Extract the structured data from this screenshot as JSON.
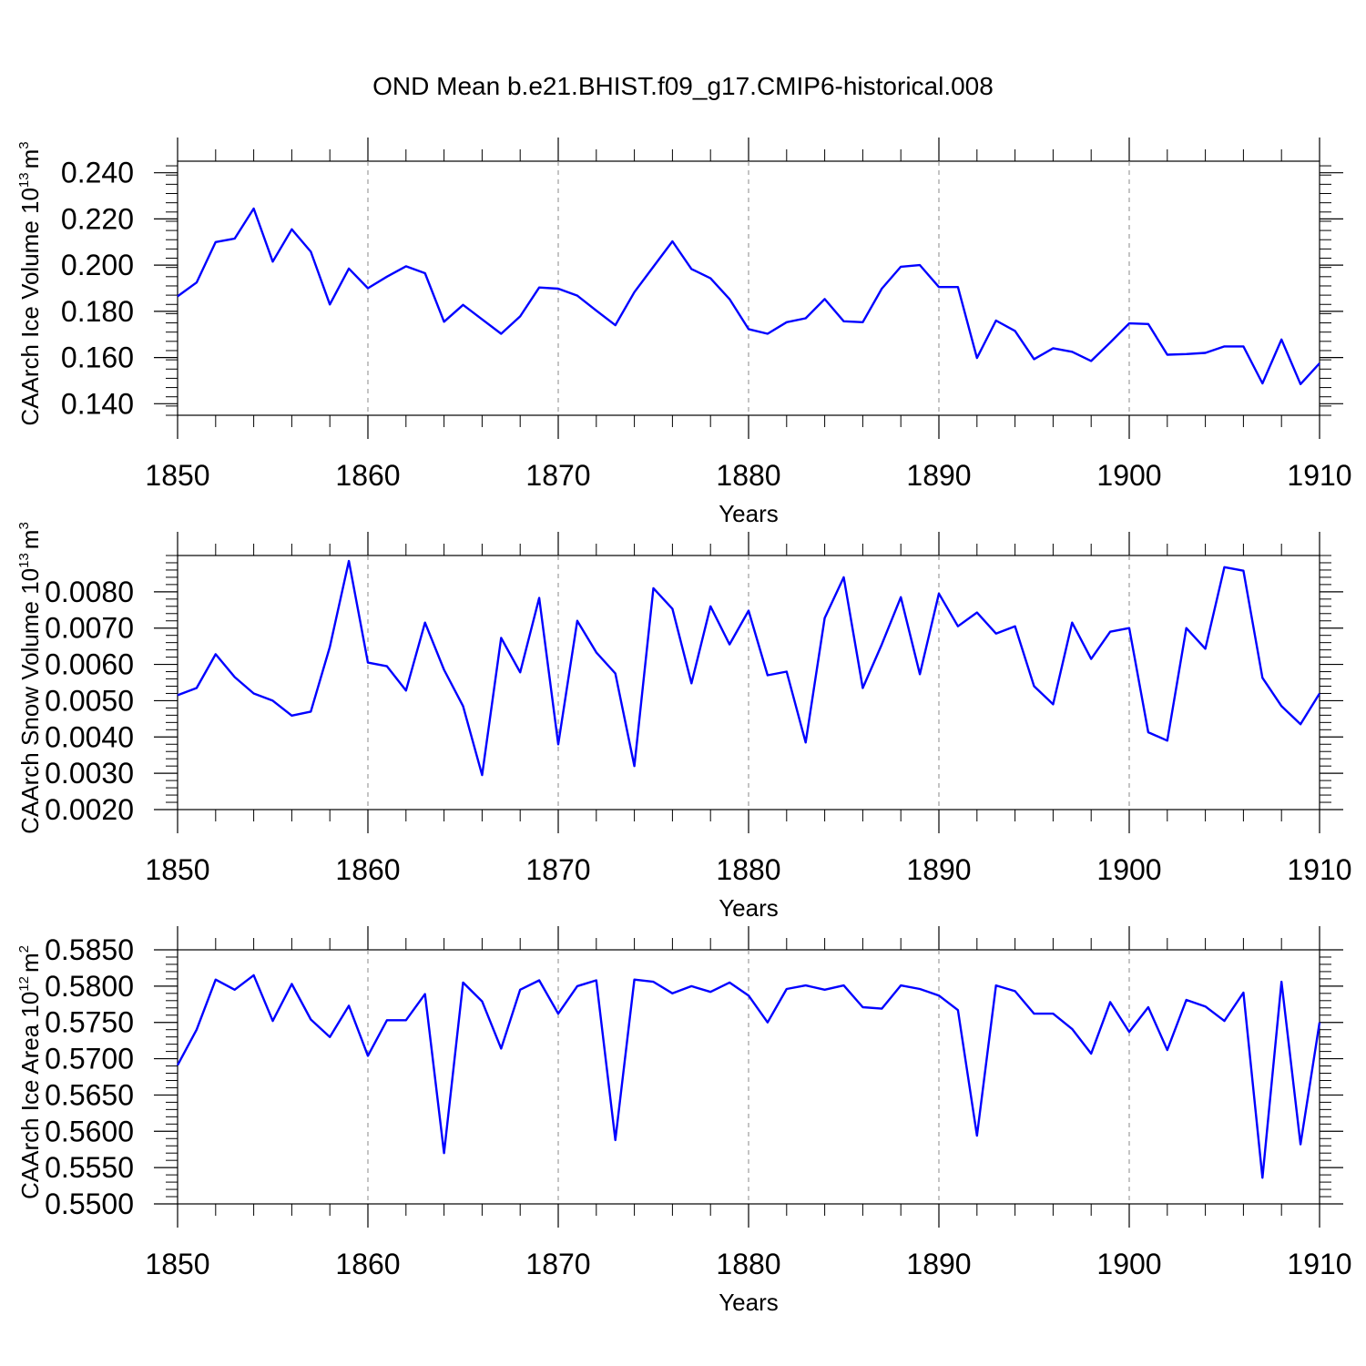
{
  "title": "OND Mean b.e21.BHIST.f09_g17.CMIP6-historical.008",
  "chart_data": [
    {
      "type": "line",
      "ylabel": "CAArch Ice Volume 10",
      "ylabel_exponent": "13",
      "ylabel_unit": "m",
      "ylabel_unit_exponent": "3",
      "xlabel": "Years",
      "xlim": [
        1850,
        1910
      ],
      "ylim": [
        0.135,
        0.245
      ],
      "yticks": [
        0.14,
        0.16,
        0.18,
        0.2,
        0.22,
        0.24
      ],
      "yticklabels": [
        "0.140",
        "0.160",
        "0.180",
        "0.200",
        "0.220",
        "0.240"
      ],
      "xticks": [
        1850,
        1860,
        1870,
        1880,
        1890,
        1900,
        1910
      ],
      "xticklabels": [
        "1850",
        "1860",
        "1870",
        "1880",
        "1890",
        "1900",
        "1910"
      ],
      "color": "#0000ff",
      "x": [
        1850,
        1851,
        1852,
        1853,
        1854,
        1855,
        1856,
        1857,
        1858,
        1859,
        1860,
        1861,
        1862,
        1863,
        1864,
        1865,
        1866,
        1867,
        1868,
        1869,
        1870,
        1871,
        1872,
        1873,
        1874,
        1875,
        1876,
        1877,
        1878,
        1879,
        1880,
        1881,
        1882,
        1883,
        1884,
        1885,
        1886,
        1887,
        1888,
        1889,
        1890,
        1891,
        1892,
        1893,
        1894,
        1895,
        1896,
        1897,
        1898,
        1899,
        1900,
        1901,
        1902,
        1903,
        1904,
        1905,
        1906,
        1907,
        1908,
        1909,
        1910
      ],
      "values": [
        0.1865,
        0.1925,
        0.21,
        0.2115,
        0.2245,
        0.2015,
        0.2155,
        0.2058,
        0.183,
        0.1985,
        0.19,
        0.195,
        0.1995,
        0.1965,
        0.1755,
        0.1828,
        0.1765,
        0.1703,
        0.1778,
        0.1903,
        0.1898,
        0.1868,
        0.1803,
        0.174,
        0.1883,
        0.1993,
        0.2103,
        0.1983,
        0.1943,
        0.1853,
        0.1723,
        0.1703,
        0.1753,
        0.177,
        0.1853,
        0.1757,
        0.1753,
        0.1898,
        0.1993,
        0.2,
        0.1905,
        0.1905,
        0.1598,
        0.176,
        0.1715,
        0.1593,
        0.164,
        0.1625,
        0.1585,
        0.1665,
        0.1748,
        0.1745,
        0.1612,
        0.1615,
        0.162,
        0.1648,
        0.1648,
        0.1488,
        0.1678,
        0.1485,
        0.1575
      ]
    },
    {
      "type": "line",
      "ylabel": "CAArch Snow Volume 10",
      "ylabel_exponent": "13",
      "ylabel_unit": "m",
      "ylabel_unit_exponent": "3",
      "xlabel": "Years",
      "xlim": [
        1850,
        1910
      ],
      "ylim": [
        0.002,
        0.009
      ],
      "yticks": [
        0.002,
        0.003,
        0.004,
        0.005,
        0.006,
        0.007,
        0.008
      ],
      "yticklabels": [
        "0.0020",
        "0.0030",
        "0.0040",
        "0.0050",
        "0.0060",
        "0.0070",
        "0.0080"
      ],
      "xticks": [
        1850,
        1860,
        1870,
        1880,
        1890,
        1900,
        1910
      ],
      "xticklabels": [
        "1850",
        "1860",
        "1870",
        "1880",
        "1890",
        "1900",
        "1910"
      ],
      "color": "#0000ff",
      "x": [
        1850,
        1851,
        1852,
        1853,
        1854,
        1855,
        1856,
        1857,
        1858,
        1859,
        1860,
        1861,
        1862,
        1863,
        1864,
        1865,
        1866,
        1867,
        1868,
        1869,
        1870,
        1871,
        1872,
        1873,
        1874,
        1875,
        1876,
        1877,
        1878,
        1879,
        1880,
        1881,
        1882,
        1883,
        1884,
        1885,
        1886,
        1887,
        1888,
        1889,
        1890,
        1891,
        1892,
        1893,
        1894,
        1895,
        1896,
        1897,
        1898,
        1899,
        1900,
        1901,
        1902,
        1903,
        1904,
        1905,
        1906,
        1907,
        1908,
        1909,
        1910
      ],
      "values": [
        0.00515,
        0.00535,
        0.00628,
        0.00565,
        0.0052,
        0.005,
        0.00459,
        0.0047,
        0.00648,
        0.00885,
        0.00605,
        0.00595,
        0.00528,
        0.00715,
        0.00585,
        0.00485,
        0.00295,
        0.00673,
        0.00578,
        0.00783,
        0.0038,
        0.0072,
        0.00633,
        0.00575,
        0.0032,
        0.0081,
        0.00753,
        0.00548,
        0.0076,
        0.00655,
        0.00748,
        0.0057,
        0.0058,
        0.00385,
        0.00728,
        0.0084,
        0.00535,
        0.00655,
        0.00785,
        0.00573,
        0.00795,
        0.00705,
        0.00743,
        0.00685,
        0.00705,
        0.0054,
        0.0049,
        0.00715,
        0.00615,
        0.0069,
        0.007,
        0.00413,
        0.0039,
        0.007,
        0.00643,
        0.00868,
        0.00858,
        0.00563,
        0.00485,
        0.00435,
        0.0052
      ]
    },
    {
      "type": "line",
      "ylabel": "CAArch Ice Area 10",
      "ylabel_exponent": "12",
      "ylabel_unit": "m",
      "ylabel_unit_exponent": "2",
      "xlabel": "Years",
      "xlim": [
        1850,
        1910
      ],
      "ylim": [
        0.55,
        0.585
      ],
      "yticks": [
        0.55,
        0.555,
        0.56,
        0.565,
        0.57,
        0.575,
        0.58,
        0.585
      ],
      "yticklabels": [
        "0.5500",
        "0.5550",
        "0.5600",
        "0.5650",
        "0.5700",
        "0.5750",
        "0.5800",
        "0.5850"
      ],
      "xticks": [
        1850,
        1860,
        1870,
        1880,
        1890,
        1900,
        1910
      ],
      "xticklabels": [
        "1850",
        "1860",
        "1870",
        "1880",
        "1890",
        "1900",
        "1910"
      ],
      "color": "#0000ff",
      "x": [
        1850,
        1851,
        1852,
        1853,
        1854,
        1855,
        1856,
        1857,
        1858,
        1859,
        1860,
        1861,
        1862,
        1863,
        1864,
        1865,
        1866,
        1867,
        1868,
        1869,
        1870,
        1871,
        1872,
        1873,
        1874,
        1875,
        1876,
        1877,
        1878,
        1879,
        1880,
        1881,
        1882,
        1883,
        1884,
        1885,
        1886,
        1887,
        1888,
        1889,
        1890,
        1891,
        1892,
        1893,
        1894,
        1895,
        1896,
        1897,
        1898,
        1899,
        1900,
        1901,
        1902,
        1903,
        1904,
        1905,
        1906,
        1907,
        1908,
        1909,
        1910
      ],
      "values": [
        0.5691,
        0.574,
        0.5809,
        0.5795,
        0.5815,
        0.5752,
        0.5803,
        0.5754,
        0.573,
        0.5773,
        0.5704,
        0.5753,
        0.5753,
        0.5789,
        0.557,
        0.5805,
        0.5779,
        0.5714,
        0.5795,
        0.5808,
        0.5762,
        0.58,
        0.5808,
        0.5588,
        0.5809,
        0.5806,
        0.579,
        0.58,
        0.5792,
        0.5805,
        0.5787,
        0.575,
        0.5796,
        0.5801,
        0.5795,
        0.5801,
        0.5771,
        0.5769,
        0.5801,
        0.5796,
        0.5787,
        0.5767,
        0.5594,
        0.5801,
        0.5793,
        0.5762,
        0.5762,
        0.5741,
        0.5707,
        0.5778,
        0.5737,
        0.5771,
        0.5712,
        0.5781,
        0.5772,
        0.5752,
        0.5791,
        0.5536,
        0.5806,
        0.5582,
        0.575
      ]
    }
  ]
}
